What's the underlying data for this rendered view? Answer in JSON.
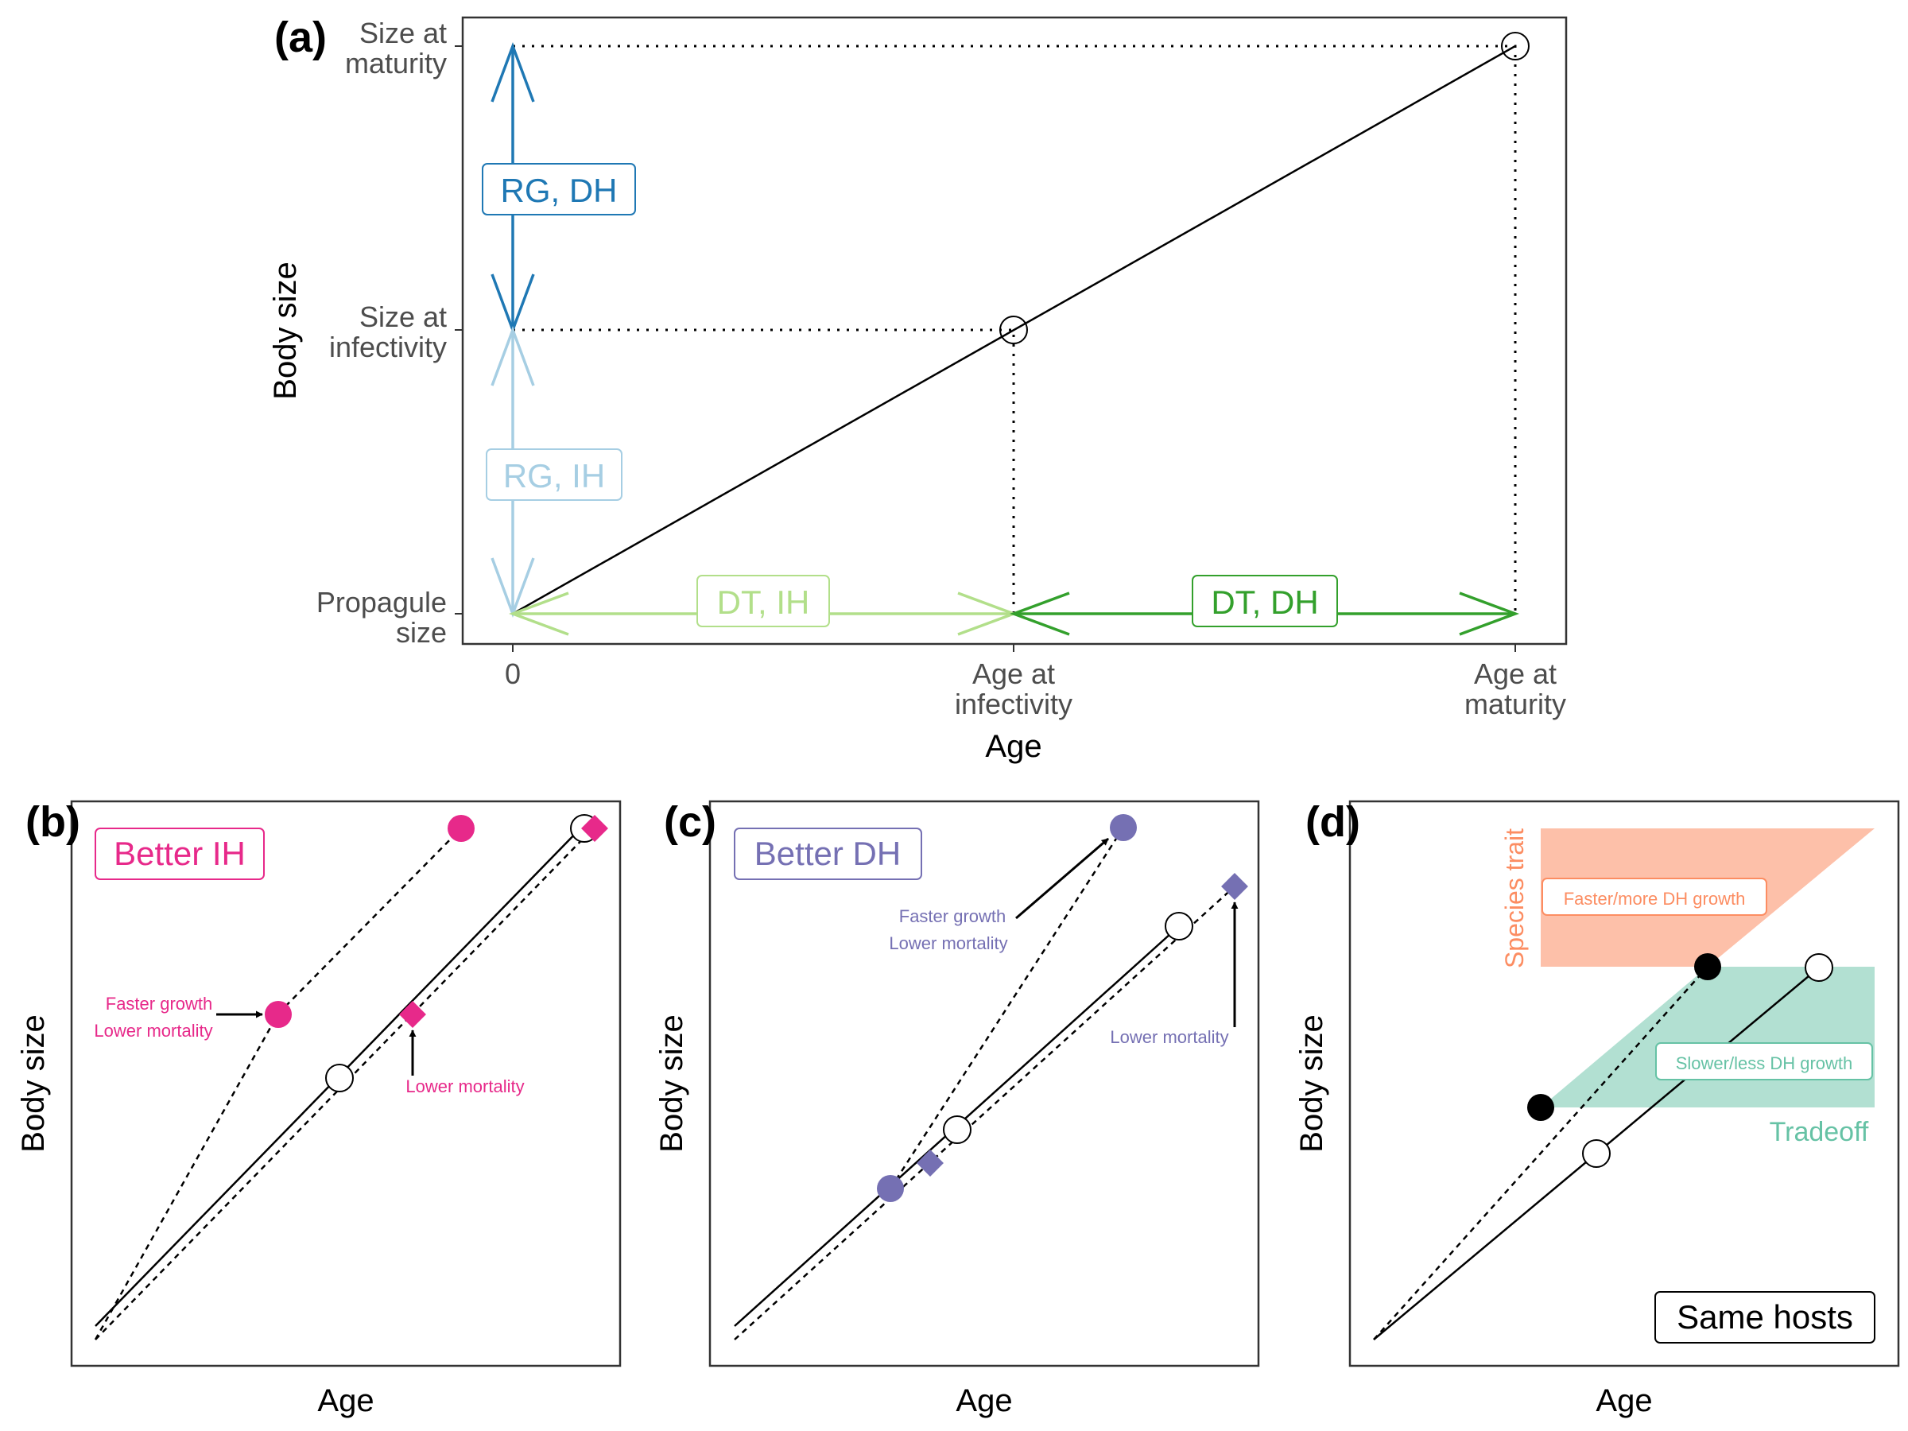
{
  "panel_a": {
    "label": "(a)",
    "y_title": "Body size",
    "x_title": "Age",
    "y_ticks": [
      {
        "line1": "Size at",
        "line2": "maturity"
      },
      {
        "line1": "Size at",
        "line2": "infectivity"
      },
      {
        "line1": "Propagule",
        "line2": "size"
      }
    ],
    "x_ticks": [
      {
        "line1": "0",
        "line2": ""
      },
      {
        "line1": "Age at",
        "line2": "infectivity"
      },
      {
        "line1": "Age at",
        "line2": "maturity"
      }
    ],
    "boxes": {
      "rg_dh": "RG, DH",
      "rg_ih": "RG, IH",
      "dt_ih": "DT, IH",
      "dt_dh": "DT, DH"
    }
  },
  "panel_b": {
    "label": "(b)",
    "title": "Better IH",
    "y_title": "Body size",
    "x_title": "Age",
    "ann_growth_1": "Faster growth",
    "ann_growth_2": "Lower mortality",
    "ann_mortality": "Lower mortality"
  },
  "panel_c": {
    "label": "(c)",
    "title": "Better DH",
    "y_title": "Body size",
    "x_title": "Age",
    "ann_growth_1": "Faster growth",
    "ann_growth_2": "Lower mortality",
    "ann_mortality": "Lower mortality"
  },
  "panel_d": {
    "label": "(d)",
    "y_title": "Body size",
    "x_title": "Age",
    "species_trait": "Species trait",
    "faster_box": "Faster/more DH growth",
    "slower_box": "Slower/less DH growth",
    "tradeoff": "Tradeoff",
    "same_hosts": "Same hosts"
  },
  "colors": {
    "rg_dh": "#1f78b4",
    "rg_ih": "#a6cee3",
    "dt_ih": "#b2df8a",
    "dt_dh": "#33a02c",
    "better_ih": "#e7298a",
    "better_dh": "#7570b3",
    "species_trait": "#fc8d62",
    "tradeoff": "#66c2a5"
  }
}
